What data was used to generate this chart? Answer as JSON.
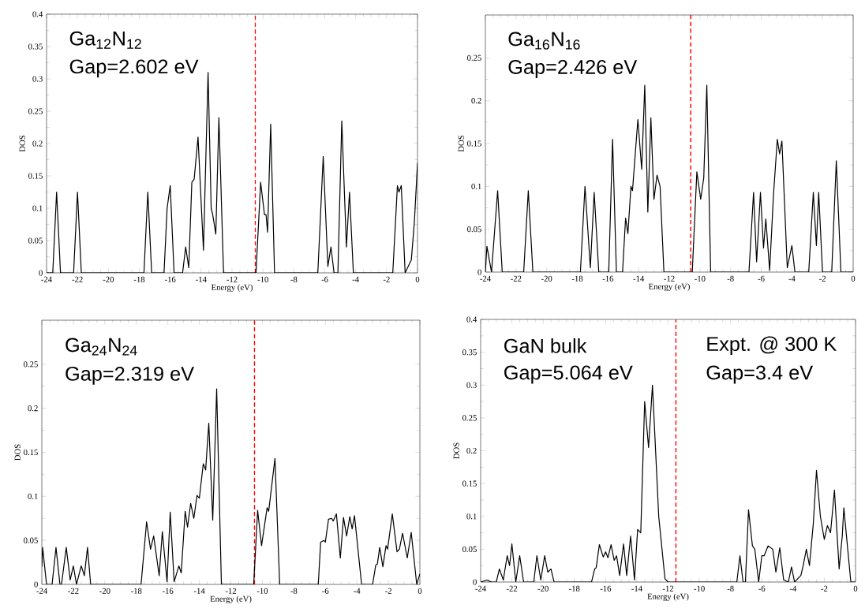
{
  "chart_data": [
    {
      "type": "line",
      "xlabel": "Energy (eV)",
      "ylabel": "DOS",
      "annotations": [
        "Ga$_{12}$N$_{12}$",
        "Gap=2.602 eV"
      ],
      "xlim": [
        -24,
        0
      ],
      "xticks": [
        -24,
        -22,
        -20,
        -18,
        -16,
        -14,
        -12,
        -10,
        -8,
        -6,
        -4,
        -2,
        0
      ],
      "ylim": [
        0,
        0.4
      ],
      "yticks": [
        0,
        0.05,
        0.1,
        0.15,
        0.2,
        0.25,
        0.3,
        0.35,
        0.4
      ],
      "ref_lines": [
        {
          "axis": "x",
          "value": -10.5,
          "color": "#ff0000",
          "line_style": "dashed"
        }
      ],
      "series": [
        {
          "color": "#000000",
          "x": [
            -24,
            -23.6,
            -23.35,
            -23.1,
            -22.25,
            -22.0,
            -21.75,
            -17.7,
            -17.45,
            -17.2,
            -16.4,
            -16.2,
            -16.0,
            -15.75,
            -15.2,
            -15.0,
            -14.8,
            -14.6,
            -14.45,
            -14.2,
            -13.85,
            -13.55,
            -13.35,
            -13.25,
            -13.05,
            -12.85,
            -12.55,
            -10.45,
            -10.15,
            -9.9,
            -9.8,
            -9.7,
            -9.5,
            -9.25,
            -6.45,
            -6.1,
            -5.8,
            -5.6,
            -5.4,
            -5.15,
            -4.9,
            -4.6,
            -4.4,
            -4.15,
            -1.6,
            -1.3,
            -1.2,
            -1.05,
            -0.8,
            -0.4,
            -0.2,
            0
          ],
          "values": [
            0,
            0,
            0.125,
            0,
            0,
            0.125,
            0,
            0,
            0.125,
            0,
            0,
            0.1,
            0.135,
            0,
            0,
            0.04,
            0.008,
            0.14,
            0.145,
            0.21,
            0.035,
            0.31,
            0.1,
            0.09,
            0.06,
            0.24,
            0,
            0,
            0.14,
            0.09,
            0.09,
            0.063,
            0.23,
            0,
            0,
            0.18,
            0.01,
            0.04,
            0,
            0,
            0.235,
            0.04,
            0.125,
            0,
            0,
            0.135,
            0.125,
            0.135,
            0,
            0.02,
            0.08,
            0.17
          ]
        }
      ]
    },
    {
      "type": "line",
      "xlabel": "Energy (eV)",
      "ylabel": "DOS",
      "annotations": [
        "Ga$_{16}$N$_{16}$",
        "Gap=2.426 eV"
      ],
      "xlim": [
        -24,
        0
      ],
      "xticks": [
        -24,
        -22,
        -20,
        -18,
        -16,
        -14,
        -12,
        -10,
        -8,
        -6,
        -4,
        -2,
        0
      ],
      "ylim": [
        0,
        0.3
      ],
      "yticks": [
        0,
        0.05,
        0.1,
        0.15,
        0.2,
        0.25
      ],
      "ref_lines": [
        {
          "axis": "x",
          "value": -10.6,
          "color": "#ff0000",
          "line_style": "dashed"
        }
      ],
      "series": [
        {
          "color": "#000000",
          "x": [
            -24,
            -23.9,
            -23.6,
            -23.2,
            -22.9,
            -21.5,
            -21.2,
            -20.9,
            -17.8,
            -17.5,
            -17.15,
            -16.9,
            -16.6,
            -15.95,
            -15.7,
            -15.45,
            -15.05,
            -14.85,
            -14.7,
            -14.5,
            -14.4,
            -14.05,
            -13.8,
            -13.6,
            -13.4,
            -13.2,
            -13.0,
            -12.8,
            -12.6,
            -12.35,
            -10.5,
            -10.2,
            -9.95,
            -9.75,
            -9.55,
            -9.3,
            -6.8,
            -6.5,
            -6.3,
            -6.05,
            -5.85,
            -5.7,
            -5.45,
            -5.2,
            -4.95,
            -4.8,
            -4.65,
            -4.3,
            -4.0,
            -3.8,
            -2.9,
            -2.6,
            -2.4,
            -2.25,
            -2.0,
            -1.4,
            -1.1,
            -0.8,
            0
          ],
          "values": [
            0,
            0.03,
            0,
            0.095,
            0,
            0,
            0.095,
            0,
            0,
            0.1,
            0.005,
            0.093,
            0,
            0,
            0.155,
            0,
            0,
            0.063,
            0.045,
            0.1,
            0.095,
            0.178,
            0.12,
            0.218,
            0.07,
            0.18,
            0.085,
            0.113,
            0.1,
            0,
            0,
            0.117,
            0.085,
            0.11,
            0.218,
            0,
            0,
            0.093,
            0.012,
            0.093,
            0.028,
            0.062,
            0.002,
            0.09,
            0.155,
            0.138,
            0.153,
            0.005,
            0.031,
            0,
            0,
            0.093,
            0.031,
            0.093,
            0,
            0,
            0.13,
            0,
            0
          ]
        }
      ]
    },
    {
      "type": "line",
      "xlabel": "Energy (eV)",
      "ylabel": "DOS",
      "annotations": [
        "Ga$_{24}$N$_{24}$",
        "Gap=2.319 eV"
      ],
      "xlim": [
        -24,
        0
      ],
      "xticks": [
        -24,
        -22,
        -20,
        -18,
        -16,
        -14,
        -12,
        -10,
        -8,
        -6,
        -4,
        -2,
        0
      ],
      "ylim": [
        0,
        0.3
      ],
      "yticks": [
        0,
        0.05,
        0.1,
        0.15,
        0.2,
        0.25
      ],
      "ref_lines": [
        {
          "axis": "x",
          "value": -10.5,
          "color": "#ff0000",
          "line_style": "dashed"
        }
      ],
      "series": [
        {
          "color": "#000000",
          "x": [
            -24,
            -23.95,
            -23.7,
            -23.35,
            -23.1,
            -22.85,
            -22.75,
            -22.45,
            -22.2,
            -22.0,
            -21.8,
            -21.5,
            -21.3,
            -21.1,
            -20.9,
            -17.7,
            -17.35,
            -17.1,
            -16.9,
            -16.55,
            -16.35,
            -16.05,
            -15.85,
            -15.6,
            -15.3,
            -15.15,
            -14.9,
            -14.75,
            -14.55,
            -14.35,
            -14.15,
            -14.0,
            -13.75,
            -13.6,
            -13.4,
            -13.15,
            -12.9,
            -12.6,
            -10.55,
            -10.3,
            -10.05,
            -9.7,
            -9.6,
            -9.2,
            -8.9,
            -6.45,
            -6.3,
            -6.1,
            -6.0,
            -5.8,
            -5.6,
            -5.5,
            -5.3,
            -5.05,
            -4.85,
            -4.65,
            -4.45,
            -4.3,
            -4.15,
            -3.7,
            -3.0,
            -2.8,
            -2.7,
            -2.55,
            -2.35,
            -2.15,
            -2.05,
            -1.75,
            -1.45,
            -1.3,
            -1.1,
            -0.8,
            -0.55,
            -0.2,
            0
          ],
          "values": [
            0.02,
            0.042,
            0,
            0,
            0.042,
            0,
            0,
            0.042,
            0.005,
            0.021,
            0,
            0.021,
            0.01,
            0.042,
            0,
            0,
            0.071,
            0.04,
            0.055,
            0.01,
            0.06,
            0.003,
            0.082,
            0.003,
            0.021,
            0.013,
            0.083,
            0.065,
            0.092,
            0.075,
            0.101,
            0.098,
            0.137,
            0.13,
            0.183,
            0.073,
            0.222,
            0,
            0,
            0.084,
            0.044,
            0.087,
            0.083,
            0.143,
            0,
            0,
            0.048,
            0.05,
            0.048,
            0.074,
            0.075,
            0.072,
            0.08,
            0.03,
            0.076,
            0.055,
            0.077,
            0.063,
            0.078,
            0,
            0,
            0.022,
            0.023,
            0.042,
            0.02,
            0.044,
            0.04,
            0.08,
            0.037,
            0.04,
            0.058,
            0.03,
            0.059,
            0,
            0.012
          ]
        }
      ]
    },
    {
      "type": "line",
      "xlabel": "Energy (eV)",
      "ylabel": "DOS",
      "annotations": [
        "GaN bulk",
        "Gap=5.064 eV",
        "Expt. @ 300 K",
        "Gap=3.4  eV"
      ],
      "xlim": [
        -24,
        0
      ],
      "xticks": [
        -24,
        -22,
        -20,
        -18,
        -16,
        -14,
        -12,
        -10,
        -8,
        -6,
        -4,
        -2,
        0
      ],
      "ylim": [
        0,
        0.4
      ],
      "yticks": [
        0,
        0.05,
        0.1,
        0.15,
        0.2,
        0.25,
        0.3,
        0.35,
        0.4
      ],
      "ref_lines": [
        {
          "axis": "x",
          "value": -11.5,
          "color": "#ff0000",
          "line_style": "dashed"
        }
      ],
      "series": [
        {
          "color": "#000000",
          "x": [
            -24,
            -23.6,
            -23.3,
            -23.0,
            -22.8,
            -22.55,
            -22.3,
            -22.15,
            -22.0,
            -21.75,
            -21.5,
            -21.25,
            -20.6,
            -20.4,
            -20.15,
            -19.9,
            -19.7,
            -19.5,
            -19.3,
            -16.9,
            -16.7,
            -16.6,
            -16.4,
            -16.15,
            -16.0,
            -15.85,
            -15.65,
            -15.45,
            -15.3,
            -15.1,
            -14.85,
            -14.65,
            -14.4,
            -14.15,
            -13.95,
            -13.75,
            -13.5,
            -13.25,
            -13.0,
            -12.6,
            -12.2,
            -12.0,
            -7.6,
            -7.4,
            -7.2,
            -7.05,
            -6.85,
            -6.6,
            -6.45,
            -6.2,
            -6.0,
            -5.85,
            -5.6,
            -5.3,
            -5.1,
            -4.85,
            -4.6,
            -4.3,
            -4.1,
            -3.9,
            -3.5,
            -3.35,
            -3.15,
            -2.95,
            -2.7,
            -2.5,
            -2.25,
            -2.0,
            -1.8,
            -1.6,
            -1.35,
            -1.05,
            -0.85,
            -0.75,
            -0.5,
            -0.3,
            0
          ],
          "values": [
            0,
            0.003,
            0,
            0,
            0.02,
            0.003,
            0.04,
            0.025,
            0.058,
            0,
            0.04,
            0,
            0,
            0.04,
            0.003,
            0.04,
            0.015,
            0.02,
            0,
            0,
            0.02,
            0.022,
            0.057,
            0.038,
            0.046,
            0.037,
            0.057,
            0.033,
            0.04,
            0.01,
            0.058,
            0.01,
            0.07,
            0.003,
            0.08,
            0.075,
            0.275,
            0.205,
            0.3,
            0.1,
            0.005,
            0,
            0,
            0.04,
            0,
            0,
            0.11,
            0.055,
            0.05,
            0,
            0.04,
            0.04,
            0.055,
            0.05,
            0.015,
            0.052,
            0.003,
            0,
            0.023,
            0,
            0.01,
            0.025,
            0.05,
            0.025,
            0.09,
            0.17,
            0.1,
            0.065,
            0.086,
            0.075,
            0.14,
            0.02,
            0.07,
            0.113,
            0.05,
            0,
            0
          ]
        }
      ]
    }
  ]
}
